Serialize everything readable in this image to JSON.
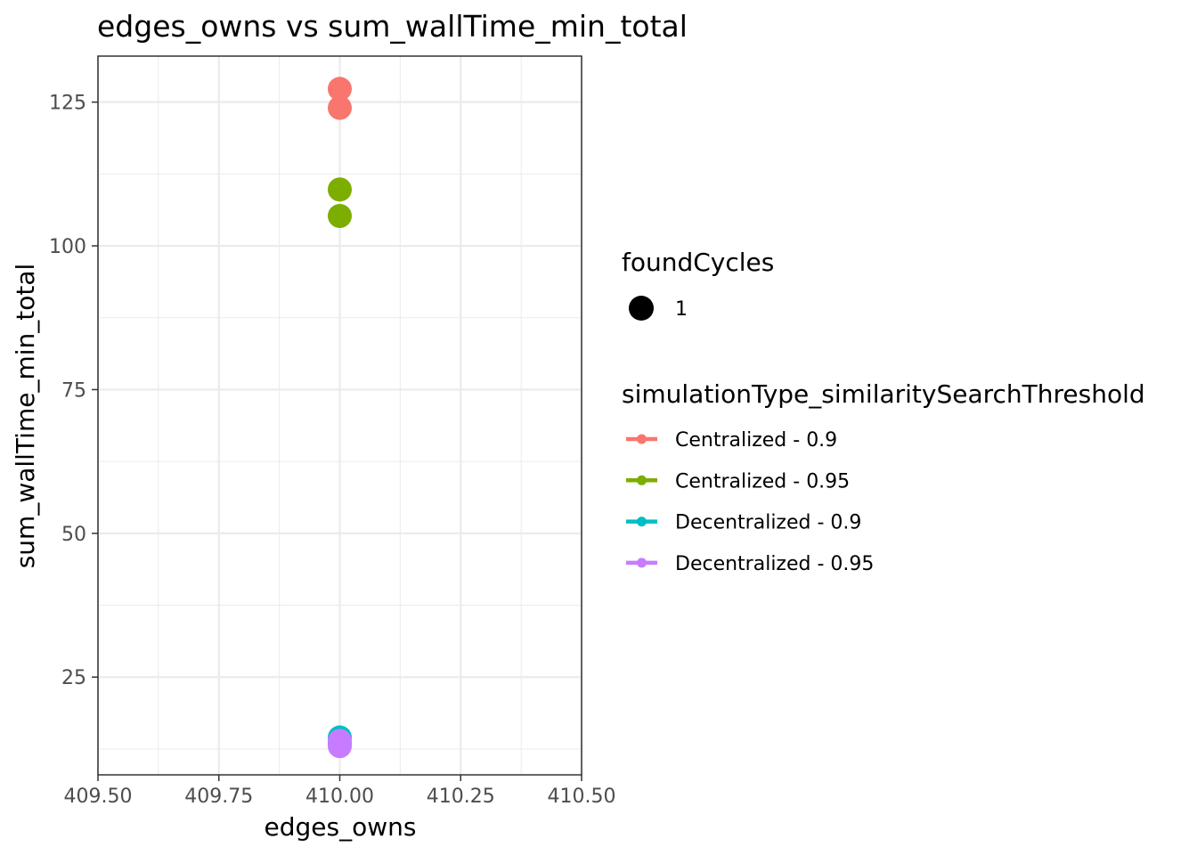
{
  "chart_data": {
    "type": "scatter",
    "title": "edges_owns  vs  sum_wallTime_min_total",
    "xlabel": "edges_owns",
    "ylabel": "sum_wallTime_min_total",
    "xlim": [
      409.5,
      410.5
    ],
    "ylim": [
      8,
      133
    ],
    "x_ticks": [
      "409.50",
      "409.75",
      "410.00",
      "410.25",
      "410.50"
    ],
    "x_tick_values": [
      409.5,
      409.75,
      410.0,
      410.25,
      410.5
    ],
    "y_ticks": [
      "25",
      "50",
      "75",
      "100",
      "125"
    ],
    "y_tick_values": [
      25,
      50,
      75,
      100,
      125
    ],
    "grid": true,
    "legend_position": "right",
    "size_legend": {
      "title": "foundCycles",
      "entries": [
        {
          "label": "1",
          "color": "#000000"
        }
      ]
    },
    "color_legend": {
      "title": "simulationType_similaritySearchThreshold"
    },
    "series": [
      {
        "name": "Centralized - 0.9",
        "color": "#F8766D",
        "points": [
          {
            "x": 410.0,
            "y": 127.3
          },
          {
            "x": 410.0,
            "y": 124.0
          }
        ]
      },
      {
        "name": "Centralized - 0.95",
        "color": "#7CAE00",
        "points": [
          {
            "x": 410.0,
            "y": 109.8
          },
          {
            "x": 410.0,
            "y": 105.2
          }
        ]
      },
      {
        "name": "Decentralized - 0.9",
        "color": "#00BFC4",
        "points": [
          {
            "x": 410.0,
            "y": 14.5
          },
          {
            "x": 410.0,
            "y": 13.5
          }
        ]
      },
      {
        "name": "Decentralized - 0.95",
        "color": "#C77CFF",
        "points": [
          {
            "x": 410.0,
            "y": 13.9
          },
          {
            "x": 410.0,
            "y": 13.0
          }
        ]
      }
    ]
  }
}
